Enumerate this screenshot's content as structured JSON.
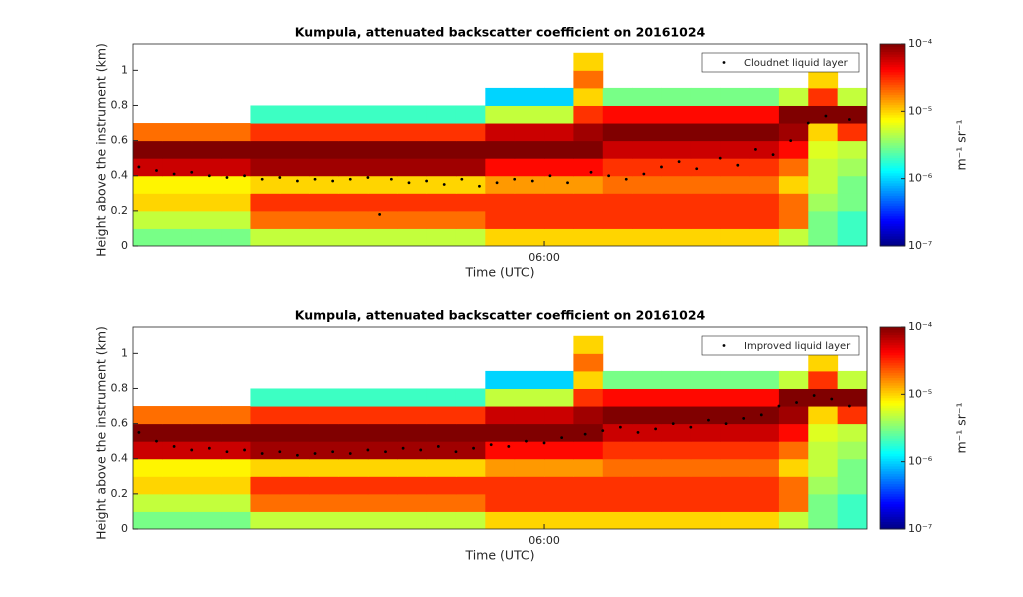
{
  "chart_data": [
    {
      "type": "heatmap",
      "title": "Kumpula, attenuated backscatter coefficient on 20161024",
      "xlabel": "Time (UTC)",
      "ylabel": "Height above the instrument (km)",
      "colorbar_label": "m⁻¹ sr⁻¹",
      "xlim": [
        2.5,
        8.75
      ],
      "ylim": [
        0,
        1.15
      ],
      "xticks": [
        {
          "value": 6,
          "label": "06:00"
        }
      ],
      "yticks": [
        0,
        0.2,
        0.4,
        0.6,
        0.8,
        1
      ],
      "zscale": "log",
      "zlim": [
        1e-07,
        0.0001
      ],
      "zticks": [
        {
          "value": 1e-07,
          "label": "10⁻⁷"
        },
        {
          "value": 1e-06,
          "label": "10⁻⁶"
        },
        {
          "value": 1e-05,
          "label": "10⁻⁵"
        },
        {
          "value": 0.0001,
          "label": "10⁻⁴"
        }
      ],
      "x_edges": [
        2.5,
        2.75,
        3,
        3.25,
        3.5,
        3.75,
        4,
        4.25,
        4.5,
        4.75,
        5,
        5.25,
        5.5,
        5.75,
        6,
        6.25,
        6.5,
        6.75,
        7,
        7.25,
        7.5,
        7.75,
        8,
        8.25,
        8.5,
        8.75
      ],
      "y_edges": [
        0,
        0.1,
        0.2,
        0.3,
        0.4,
        0.5,
        0.6,
        0.7,
        0.8,
        0.9,
        1,
        1.1
      ],
      "values": [
        [
          3e-06,
          3e-06,
          3e-06,
          3e-06,
          5e-06,
          5e-06,
          5e-06,
          5e-06,
          5e-06,
          5e-06,
          5e-06,
          5e-06,
          1e-05,
          1e-05,
          1e-05,
          1e-05,
          1e-05,
          1e-05,
          1e-05,
          1e-05,
          1e-05,
          1e-05,
          5e-06,
          3e-06,
          2e-06
        ],
        [
          5e-06,
          5e-06,
          5e-06,
          5e-06,
          2e-05,
          2e-05,
          2e-05,
          2e-05,
          2e-05,
          2e-05,
          2e-05,
          2e-05,
          3e-05,
          3e-05,
          3e-05,
          3e-05,
          3e-05,
          3e-05,
          3e-05,
          3e-05,
          3e-05,
          3e-05,
          2e-05,
          3e-06,
          2e-06
        ],
        [
          1e-05,
          1e-05,
          1e-05,
          1e-05,
          3e-05,
          3e-05,
          3e-05,
          3e-05,
          3e-05,
          3e-05,
          3e-05,
          3e-05,
          3e-05,
          3e-05,
          3e-05,
          3e-05,
          3e-05,
          3e-05,
          3e-05,
          3e-05,
          3e-05,
          3e-05,
          2e-05,
          4e-06,
          3e-06
        ],
        [
          8e-06,
          8e-06,
          8e-06,
          8e-06,
          1e-05,
          1e-05,
          1e-05,
          1e-05,
          1e-05,
          1e-05,
          1e-05,
          1e-05,
          1.5e-05,
          1.5e-05,
          1.5e-05,
          1.5e-05,
          2e-05,
          2e-05,
          2e-05,
          2e-05,
          2e-05,
          2e-05,
          1e-05,
          5e-06,
          3e-06
        ],
        [
          6e-05,
          6e-05,
          6e-05,
          6e-05,
          8e-05,
          8e-05,
          8e-05,
          8e-05,
          8e-05,
          8e-05,
          8e-05,
          8e-05,
          4e-05,
          4e-05,
          4e-05,
          4e-05,
          3e-05,
          3e-05,
          3e-05,
          3e-05,
          3e-05,
          3e-05,
          2e-05,
          5e-06,
          4e-06
        ],
        [
          0.0001,
          0.0001,
          0.0001,
          0.0001,
          0.0001,
          0.0001,
          0.0001,
          0.0001,
          0.0001,
          0.0001,
          0.0001,
          0.0001,
          0.0001,
          0.0001,
          0.0001,
          0.0001,
          6e-05,
          6e-05,
          6e-05,
          6e-05,
          6e-05,
          6e-05,
          4e-05,
          6e-06,
          5e-06
        ],
        [
          2e-05,
          2e-05,
          2e-05,
          2e-05,
          3e-05,
          3e-05,
          3e-05,
          3e-05,
          3e-05,
          3e-05,
          3e-05,
          3e-05,
          6e-05,
          6e-05,
          6e-05,
          8e-05,
          0.0001,
          0.0001,
          0.0001,
          0.0001,
          0.0001,
          0.0001,
          8e-05,
          1e-05,
          3e-05
        ],
        [
          null,
          null,
          null,
          null,
          2e-06,
          2e-06,
          2e-06,
          2e-06,
          2e-06,
          2e-06,
          2e-06,
          2e-06,
          5e-06,
          5e-06,
          5e-06,
          3e-05,
          4e-05,
          4e-05,
          4e-05,
          4e-05,
          4e-05,
          4e-05,
          0.0001,
          0.0001,
          0.0001
        ],
        [
          null,
          null,
          null,
          null,
          null,
          null,
          null,
          null,
          null,
          null,
          null,
          null,
          1e-06,
          1e-06,
          1e-06,
          1e-05,
          3e-06,
          3e-06,
          3e-06,
          3e-06,
          3e-06,
          3e-06,
          5e-06,
          3e-05,
          5e-06
        ],
        [
          null,
          null,
          null,
          null,
          null,
          null,
          null,
          null,
          null,
          null,
          null,
          null,
          null,
          null,
          null,
          2e-05,
          null,
          null,
          null,
          null,
          null,
          null,
          null,
          1e-05,
          null
        ],
        [
          null,
          null,
          null,
          null,
          null,
          null,
          null,
          null,
          null,
          null,
          null,
          null,
          null,
          null,
          null,
          1e-05,
          null,
          null,
          null,
          null,
          null,
          null,
          null,
          null,
          null
        ]
      ],
      "legend": "upper right",
      "series": [
        {
          "name": "Cloudnet liquid layer",
          "color": "#000000",
          "x": [
            2.55,
            2.7,
            2.85,
            3.0,
            3.15,
            3.3,
            3.45,
            3.6,
            3.75,
            3.9,
            4.05,
            4.2,
            4.35,
            4.5,
            4.6,
            4.7,
            4.85,
            5.0,
            5.15,
            5.3,
            5.45,
            5.6,
            5.75,
            5.9,
            6.05,
            6.2,
            6.4,
            6.55,
            6.7,
            6.85,
            7.0,
            7.15,
            7.3,
            7.5,
            7.65,
            7.8,
            7.95,
            8.1,
            8.25,
            8.4,
            8.6
          ],
          "y": [
            0.45,
            0.43,
            0.41,
            0.42,
            0.4,
            0.39,
            0.4,
            0.38,
            0.39,
            0.37,
            0.38,
            0.37,
            0.38,
            0.39,
            0.18,
            0.38,
            0.36,
            0.37,
            0.35,
            0.38,
            0.34,
            0.36,
            0.38,
            0.37,
            0.4,
            0.36,
            0.42,
            0.4,
            0.38,
            0.41,
            0.45,
            0.48,
            0.44,
            0.5,
            0.46,
            0.55,
            0.52,
            0.6,
            0.7,
            0.74,
            0.72
          ]
        }
      ]
    },
    {
      "type": "heatmap",
      "title": "Kumpula, attenuated backscatter coefficient on 20161024",
      "xlabel": "Time (UTC)",
      "ylabel": "Height above the instrument (km)",
      "colorbar_label": "m⁻¹ sr⁻¹",
      "xlim": [
        2.5,
        8.75
      ],
      "ylim": [
        0,
        1.15
      ],
      "xticks": [
        {
          "value": 6,
          "label": "06:00"
        }
      ],
      "yticks": [
        0,
        0.2,
        0.4,
        0.6,
        0.8,
        1
      ],
      "zscale": "log",
      "zlim": [
        1e-07,
        0.0001
      ],
      "zticks": [
        {
          "value": 1e-07,
          "label": "10⁻⁷"
        },
        {
          "value": 1e-06,
          "label": "10⁻⁶"
        },
        {
          "value": 1e-05,
          "label": "10⁻⁵"
        },
        {
          "value": 0.0001,
          "label": "10⁻⁴"
        }
      ],
      "x_edges": [
        2.5,
        2.75,
        3,
        3.25,
        3.5,
        3.75,
        4,
        4.25,
        4.5,
        4.75,
        5,
        5.25,
        5.5,
        5.75,
        6,
        6.25,
        6.5,
        6.75,
        7,
        7.25,
        7.5,
        7.75,
        8,
        8.25,
        8.5,
        8.75
      ],
      "y_edges": [
        0,
        0.1,
        0.2,
        0.3,
        0.4,
        0.5,
        0.6,
        0.7,
        0.8,
        0.9,
        1,
        1.1
      ],
      "values": [
        [
          3e-06,
          3e-06,
          3e-06,
          3e-06,
          5e-06,
          5e-06,
          5e-06,
          5e-06,
          5e-06,
          5e-06,
          5e-06,
          5e-06,
          1e-05,
          1e-05,
          1e-05,
          1e-05,
          1e-05,
          1e-05,
          1e-05,
          1e-05,
          1e-05,
          1e-05,
          5e-06,
          3e-06,
          2e-06
        ],
        [
          5e-06,
          5e-06,
          5e-06,
          5e-06,
          2e-05,
          2e-05,
          2e-05,
          2e-05,
          2e-05,
          2e-05,
          2e-05,
          2e-05,
          3e-05,
          3e-05,
          3e-05,
          3e-05,
          3e-05,
          3e-05,
          3e-05,
          3e-05,
          3e-05,
          3e-05,
          2e-05,
          3e-06,
          2e-06
        ],
        [
          1e-05,
          1e-05,
          1e-05,
          1e-05,
          3e-05,
          3e-05,
          3e-05,
          3e-05,
          3e-05,
          3e-05,
          3e-05,
          3e-05,
          3e-05,
          3e-05,
          3e-05,
          3e-05,
          3e-05,
          3e-05,
          3e-05,
          3e-05,
          3e-05,
          3e-05,
          2e-05,
          4e-06,
          3e-06
        ],
        [
          8e-06,
          8e-06,
          8e-06,
          8e-06,
          1e-05,
          1e-05,
          1e-05,
          1e-05,
          1e-05,
          1e-05,
          1e-05,
          1e-05,
          1.5e-05,
          1.5e-05,
          1.5e-05,
          1.5e-05,
          2e-05,
          2e-05,
          2e-05,
          2e-05,
          2e-05,
          2e-05,
          1e-05,
          5e-06,
          3e-06
        ],
        [
          6e-05,
          6e-05,
          6e-05,
          6e-05,
          8e-05,
          8e-05,
          8e-05,
          8e-05,
          8e-05,
          8e-05,
          8e-05,
          8e-05,
          4e-05,
          4e-05,
          4e-05,
          4e-05,
          3e-05,
          3e-05,
          3e-05,
          3e-05,
          3e-05,
          3e-05,
          2e-05,
          5e-06,
          4e-06
        ],
        [
          0.0001,
          0.0001,
          0.0001,
          0.0001,
          0.0001,
          0.0001,
          0.0001,
          0.0001,
          0.0001,
          0.0001,
          0.0001,
          0.0001,
          0.0001,
          0.0001,
          0.0001,
          0.0001,
          6e-05,
          6e-05,
          6e-05,
          6e-05,
          6e-05,
          6e-05,
          4e-05,
          6e-06,
          5e-06
        ],
        [
          2e-05,
          2e-05,
          2e-05,
          2e-05,
          3e-05,
          3e-05,
          3e-05,
          3e-05,
          3e-05,
          3e-05,
          3e-05,
          3e-05,
          6e-05,
          6e-05,
          6e-05,
          8e-05,
          0.0001,
          0.0001,
          0.0001,
          0.0001,
          0.0001,
          0.0001,
          8e-05,
          1e-05,
          3e-05
        ],
        [
          null,
          null,
          null,
          null,
          2e-06,
          2e-06,
          2e-06,
          2e-06,
          2e-06,
          2e-06,
          2e-06,
          2e-06,
          5e-06,
          5e-06,
          5e-06,
          3e-05,
          4e-05,
          4e-05,
          4e-05,
          4e-05,
          4e-05,
          4e-05,
          0.0001,
          0.0001,
          0.0001
        ],
        [
          null,
          null,
          null,
          null,
          null,
          null,
          null,
          null,
          null,
          null,
          null,
          null,
          1e-06,
          1e-06,
          1e-06,
          1e-05,
          3e-06,
          3e-06,
          3e-06,
          3e-06,
          3e-06,
          3e-06,
          5e-06,
          3e-05,
          5e-06
        ],
        [
          null,
          null,
          null,
          null,
          null,
          null,
          null,
          null,
          null,
          null,
          null,
          null,
          null,
          null,
          null,
          2e-05,
          null,
          null,
          null,
          null,
          null,
          null,
          null,
          1e-05,
          null
        ],
        [
          null,
          null,
          null,
          null,
          null,
          null,
          null,
          null,
          null,
          null,
          null,
          null,
          null,
          null,
          null,
          1e-05,
          null,
          null,
          null,
          null,
          null,
          null,
          null,
          null,
          null
        ]
      ],
      "legend": "upper right",
      "series": [
        {
          "name": "Improved liquid layer",
          "color": "#000000",
          "x": [
            2.55,
            2.7,
            2.85,
            3.0,
            3.15,
            3.3,
            3.45,
            3.6,
            3.75,
            3.9,
            4.05,
            4.2,
            4.35,
            4.5,
            4.65,
            4.8,
            4.95,
            5.1,
            5.25,
            5.4,
            5.55,
            5.7,
            5.85,
            6.0,
            6.15,
            6.35,
            6.5,
            6.65,
            6.8,
            6.95,
            7.1,
            7.25,
            7.4,
            7.55,
            7.7,
            7.85,
            8.0,
            8.15,
            8.3,
            8.45,
            8.6
          ],
          "y": [
            0.55,
            0.5,
            0.47,
            0.45,
            0.46,
            0.44,
            0.45,
            0.43,
            0.44,
            0.42,
            0.43,
            0.44,
            0.43,
            0.45,
            0.44,
            0.46,
            0.45,
            0.47,
            0.44,
            0.46,
            0.48,
            0.47,
            0.5,
            0.49,
            0.52,
            0.54,
            0.56,
            0.58,
            0.55,
            0.57,
            0.6,
            0.58,
            0.62,
            0.6,
            0.63,
            0.65,
            0.7,
            0.72,
            0.76,
            0.74,
            0.7
          ]
        }
      ]
    }
  ]
}
